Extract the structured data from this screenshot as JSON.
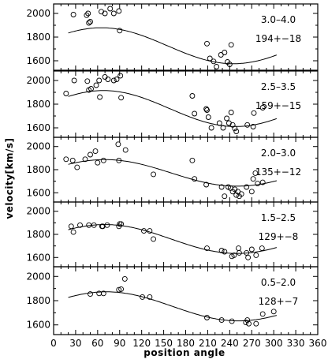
{
  "chart_data": {
    "type": "scatter",
    "xlabel": "position angle",
    "ylabel": "velocity[km/s]",
    "xlim": [
      0,
      360
    ],
    "x_ticks": [
      0,
      30,
      60,
      90,
      120,
      150,
      180,
      210,
      240,
      270,
      300,
      330,
      360
    ],
    "panels": [
      {
        "range_label": "3.0–4.0",
        "fit_label": "194+−18",
        "ylim": [
          1520,
          2080
        ],
        "y_ticks": [
          1600,
          1800,
          2000
        ],
        "fit_curve": {
          "mean": 1727,
          "amplitude": 152,
          "peak_angle": 65,
          "x_range": [
            20,
            305
          ]
        },
        "points": [
          {
            "x": 27,
            "y": 1990
          },
          {
            "x": 45,
            "y": 1985
          },
          {
            "x": 47,
            "y": 2000
          },
          {
            "x": 48,
            "y": 1920
          },
          {
            "x": 50,
            "y": 1930
          },
          {
            "x": 65,
            "y": 2015
          },
          {
            "x": 70,
            "y": 2000
          },
          {
            "x": 77,
            "y": 2040
          },
          {
            "x": 82,
            "y": 2000
          },
          {
            "x": 89,
            "y": 2020
          },
          {
            "x": 90,
            "y": 1855
          },
          {
            "x": 209,
            "y": 1745
          },
          {
            "x": 213,
            "y": 1620
          },
          {
            "x": 218,
            "y": 1595
          },
          {
            "x": 222,
            "y": 1550
          },
          {
            "x": 228,
            "y": 1650
          },
          {
            "x": 233,
            "y": 1670
          },
          {
            "x": 237,
            "y": 1590
          },
          {
            "x": 240,
            "y": 1570
          },
          {
            "x": 242,
            "y": 1735
          }
        ]
      },
      {
        "range_label": "2.5–3.5",
        "fit_label": "159+−15",
        "ylim": [
          1520,
          2080
        ],
        "y_ticks": [
          1600,
          1800,
          2000
        ],
        "fit_curve": {
          "mean": 1763,
          "amplitude": 152,
          "peak_angle": 68,
          "x_range": [
            20,
            305
          ]
        },
        "points": [
          {
            "x": 17,
            "y": 1890
          },
          {
            "x": 28,
            "y": 2000
          },
          {
            "x": 46,
            "y": 1995
          },
          {
            "x": 48,
            "y": 1920
          },
          {
            "x": 51,
            "y": 1930
          },
          {
            "x": 58,
            "y": 1960
          },
          {
            "x": 62,
            "y": 2000
          },
          {
            "x": 63,
            "y": 1860
          },
          {
            "x": 70,
            "y": 2030
          },
          {
            "x": 74,
            "y": 2010
          },
          {
            "x": 82,
            "y": 2000
          },
          {
            "x": 86,
            "y": 2010
          },
          {
            "x": 91,
            "y": 2040
          },
          {
            "x": 92,
            "y": 1855
          },
          {
            "x": 189,
            "y": 1870
          },
          {
            "x": 192,
            "y": 1720
          },
          {
            "x": 208,
            "y": 1760
          },
          {
            "x": 209,
            "y": 1750
          },
          {
            "x": 211,
            "y": 1690
          },
          {
            "x": 215,
            "y": 1600
          },
          {
            "x": 226,
            "y": 1640
          },
          {
            "x": 231,
            "y": 1600
          },
          {
            "x": 236,
            "y": 1680
          },
          {
            "x": 239,
            "y": 1640
          },
          {
            "x": 242,
            "y": 1730
          },
          {
            "x": 244,
            "y": 1625
          },
          {
            "x": 247,
            "y": 1595
          },
          {
            "x": 249,
            "y": 1570
          },
          {
            "x": 264,
            "y": 1625
          },
          {
            "x": 272,
            "y": 1610
          },
          {
            "x": 273,
            "y": 1725
          },
          {
            "x": 285,
            "y": 1770
          }
        ]
      },
      {
        "range_label": "2.0–3.0",
        "fit_label": "135+−12",
        "ylim": [
          1520,
          2080
        ],
        "y_ticks": [
          1600,
          1800,
          2000
        ],
        "fit_curve": {
          "mean": 1772,
          "amplitude": 115,
          "peak_angle": 70,
          "x_range": [
            20,
            305
          ]
        },
        "points": [
          {
            "x": 17,
            "y": 1890
          },
          {
            "x": 26,
            "y": 1880
          },
          {
            "x": 32,
            "y": 1820
          },
          {
            "x": 43,
            "y": 1890
          },
          {
            "x": 50,
            "y": 1930
          },
          {
            "x": 57,
            "y": 1960
          },
          {
            "x": 60,
            "y": 1860
          },
          {
            "x": 68,
            "y": 1880
          },
          {
            "x": 88,
            "y": 2020
          },
          {
            "x": 89,
            "y": 1880
          },
          {
            "x": 98,
            "y": 1970
          },
          {
            "x": 136,
            "y": 1760
          },
          {
            "x": 189,
            "y": 1880
          },
          {
            "x": 192,
            "y": 1720
          },
          {
            "x": 208,
            "y": 1670
          },
          {
            "x": 229,
            "y": 1650
          },
          {
            "x": 233,
            "y": 1570
          },
          {
            "x": 238,
            "y": 1650
          },
          {
            "x": 241,
            "y": 1640
          },
          {
            "x": 244,
            "y": 1610
          },
          {
            "x": 247,
            "y": 1630
          },
          {
            "x": 249,
            "y": 1580
          },
          {
            "x": 251,
            "y": 1610
          },
          {
            "x": 253,
            "y": 1570
          },
          {
            "x": 256,
            "y": 1590
          },
          {
            "x": 263,
            "y": 1650
          },
          {
            "x": 270,
            "y": 1610
          },
          {
            "x": 272,
            "y": 1720
          },
          {
            "x": 275,
            "y": 1770
          },
          {
            "x": 278,
            "y": 1680
          },
          {
            "x": 285,
            "y": 1690
          }
        ]
      },
      {
        "range_label": "1.5–2.5",
        "fit_label": "129+−8",
        "ylim": [
          1520,
          2080
        ],
        "y_ticks": [
          1600,
          1800,
          2000
        ],
        "fit_curve": {
          "mean": 1760,
          "amplitude": 125,
          "peak_angle": 70,
          "x_range": [
            20,
            305
          ]
        },
        "points": [
          {
            "x": 24,
            "y": 1870
          },
          {
            "x": 27,
            "y": 1820
          },
          {
            "x": 36,
            "y": 1880
          },
          {
            "x": 48,
            "y": 1880
          },
          {
            "x": 55,
            "y": 1880
          },
          {
            "x": 66,
            "y": 1870
          },
          {
            "x": 67,
            "y": 1870
          },
          {
            "x": 73,
            "y": 1880
          },
          {
            "x": 89,
            "y": 1870
          },
          {
            "x": 90,
            "y": 1890
          },
          {
            "x": 92,
            "y": 1890
          },
          {
            "x": 123,
            "y": 1830
          },
          {
            "x": 131,
            "y": 1830
          },
          {
            "x": 136,
            "y": 1760
          },
          {
            "x": 209,
            "y": 1680
          },
          {
            "x": 229,
            "y": 1660
          },
          {
            "x": 233,
            "y": 1650
          },
          {
            "x": 243,
            "y": 1610
          },
          {
            "x": 246,
            "y": 1620
          },
          {
            "x": 252,
            "y": 1680
          },
          {
            "x": 253,
            "y": 1640
          },
          {
            "x": 263,
            "y": 1640
          },
          {
            "x": 265,
            "y": 1600
          },
          {
            "x": 270,
            "y": 1670
          },
          {
            "x": 276,
            "y": 1620
          },
          {
            "x": 284,
            "y": 1680
          }
        ]
      },
      {
        "range_label": "0.5–2.0",
        "fit_label": "128+−7",
        "ylim": [
          1520,
          2080
        ],
        "y_ticks": [
          1600,
          1800,
          2000
        ],
        "fit_curve": {
          "mean": 1753,
          "amplitude": 120,
          "peak_angle": 72,
          "x_range": [
            20,
            305
          ]
        },
        "points": [
          {
            "x": 50,
            "y": 1855
          },
          {
            "x": 62,
            "y": 1860
          },
          {
            "x": 68,
            "y": 1860
          },
          {
            "x": 89,
            "y": 1890
          },
          {
            "x": 92,
            "y": 1895
          },
          {
            "x": 97,
            "y": 1980
          },
          {
            "x": 121,
            "y": 1830
          },
          {
            "x": 131,
            "y": 1830
          },
          {
            "x": 209,
            "y": 1660
          },
          {
            "x": 229,
            "y": 1640
          },
          {
            "x": 243,
            "y": 1630
          },
          {
            "x": 262,
            "y": 1620
          },
          {
            "x": 264,
            "y": 1640
          },
          {
            "x": 266,
            "y": 1610
          },
          {
            "x": 276,
            "y": 1610
          },
          {
            "x": 285,
            "y": 1690
          },
          {
            "x": 300,
            "y": 1710
          }
        ]
      }
    ]
  }
}
